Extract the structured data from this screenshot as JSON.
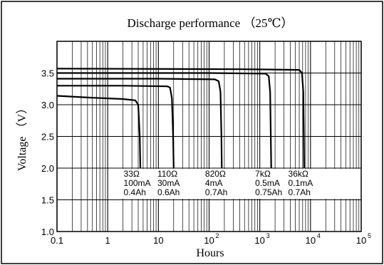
{
  "chart_data": {
    "type": "line",
    "title": "Discharge performance （25℃）",
    "xlabel": "Hours",
    "ylabel": "Voltage （V）",
    "x_scale": "log",
    "xlim": [
      0.1,
      100000
    ],
    "ylim": [
      1.0,
      4.0
    ],
    "grid": true,
    "x_ticks": [
      {
        "value": 0.1,
        "base": "0.1",
        "exp": ""
      },
      {
        "value": 1,
        "base": "1",
        "exp": ""
      },
      {
        "value": 10,
        "base": "10",
        "exp": ""
      },
      {
        "value": 100,
        "base": "10",
        "exp": "2"
      },
      {
        "value": 1000,
        "base": "10",
        "exp": "3"
      },
      {
        "value": 10000,
        "base": "10",
        "exp": "4"
      },
      {
        "value": 100000,
        "base": "10",
        "exp": "5"
      }
    ],
    "y_ticks": [
      {
        "value": 1.0,
        "label": "1.0"
      },
      {
        "value": 1.5,
        "label": "1.5"
      },
      {
        "value": 2.0,
        "label": "2.0"
      },
      {
        "value": 2.5,
        "label": "2.5"
      },
      {
        "value": 3.0,
        "label": "3.0"
      },
      {
        "value": 3.5,
        "label": "3.5"
      }
    ],
    "series": [
      {
        "name": "33Ω",
        "current": "100mA",
        "capacity": "0.4Ah",
        "color": "#000000",
        "points": [
          [
            0.1,
            3.14
          ],
          [
            0.5,
            3.11
          ],
          [
            2.0,
            3.09
          ],
          [
            3.5,
            3.07
          ],
          [
            4.0,
            3.0
          ],
          [
            4.3,
            2.5
          ],
          [
            4.4,
            2.0
          ]
        ]
      },
      {
        "name": "110Ω",
        "current": "30mA",
        "capacity": "0.6Ah",
        "color": "#000000",
        "points": [
          [
            0.1,
            3.3
          ],
          [
            2.0,
            3.3
          ],
          [
            15.0,
            3.29
          ],
          [
            17.0,
            3.27
          ],
          [
            18.5,
            3.1
          ],
          [
            19.5,
            2.5
          ],
          [
            20.0,
            2.0
          ]
        ]
      },
      {
        "name": "820Ω",
        "current": "4mA",
        "capacity": "0.7Ah",
        "color": "#000000",
        "points": [
          [
            0.1,
            3.41
          ],
          [
            10.0,
            3.41
          ],
          [
            130.0,
            3.4
          ],
          [
            155.0,
            3.37
          ],
          [
            168.0,
            3.2
          ],
          [
            175.0,
            2.5
          ],
          [
            178.0,
            2.0
          ]
        ]
      },
      {
        "name": "7kΩ",
        "current": "0.5mA",
        "capacity": "0.75Ah",
        "color": "#000000",
        "points": [
          [
            0.1,
            3.5
          ],
          [
            100.0,
            3.5
          ],
          [
            1300.0,
            3.49
          ],
          [
            1500.0,
            3.45
          ],
          [
            1600.0,
            3.2
          ],
          [
            1650.0,
            2.5
          ],
          [
            1680.0,
            2.0
          ]
        ]
      },
      {
        "name": "36kΩ",
        "current": "0.1mA",
        "capacity": "0.7Ah",
        "color": "#000000",
        "points": [
          [
            0.1,
            3.57
          ],
          [
            500.0,
            3.56
          ],
          [
            6000.0,
            3.55
          ],
          [
            6800.0,
            3.5
          ],
          [
            7200.0,
            3.2
          ],
          [
            7400.0,
            2.5
          ],
          [
            7500.0,
            2.0
          ]
        ]
      }
    ],
    "annotations": [
      {
        "series": "33Ω",
        "lines": [
          "33Ω",
          "100mA",
          "0.4Ah"
        ],
        "x_at": 4.2
      },
      {
        "series": "110Ω",
        "lines": [
          "110Ω",
          "30mA",
          "0.6Ah"
        ],
        "x_at": 19.5
      },
      {
        "series": "820Ω",
        "lines": [
          "820Ω",
          "4mA",
          "0.7Ah"
        ],
        "x_at": 170
      },
      {
        "series": "7kΩ",
        "lines": [
          "7kΩ",
          "0.5mA",
          "0.75Ah"
        ],
        "x_at": 1650
      },
      {
        "series": "36kΩ",
        "lines": [
          "36kΩ",
          "0.1mA",
          "0.7Ah"
        ],
        "x_at": 7400
      }
    ]
  }
}
